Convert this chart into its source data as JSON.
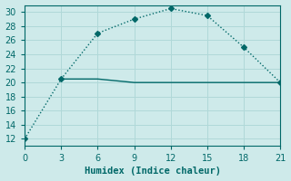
{
  "xlabel": "Humidex (Indice chaleur)",
  "line1_x": [
    0,
    3,
    6,
    9,
    12,
    15,
    18,
    21
  ],
  "line1_y": [
    12,
    20.5,
    27,
    29,
    30.5,
    29.5,
    25,
    20
  ],
  "line2_x": [
    3,
    6,
    9,
    12,
    15,
    18,
    21
  ],
  "line2_y": [
    20.5,
    20.5,
    20,
    20,
    20,
    20,
    20
  ],
  "line_color": "#006868",
  "bg_color": "#ceeaea",
  "grid_color": "#b0d8d8",
  "spine_color": "#006868",
  "tick_color": "#006868",
  "xlim": [
    0,
    21
  ],
  "ylim": [
    11,
    31
  ],
  "xticks": [
    0,
    3,
    6,
    9,
    12,
    15,
    18,
    21
  ],
  "yticks": [
    12,
    14,
    16,
    18,
    20,
    22,
    24,
    26,
    28,
    30
  ],
  "marker": "D",
  "markersize": 3,
  "linewidth": 1.0,
  "xlabel_fontsize": 7.5,
  "tick_fontsize": 7
}
